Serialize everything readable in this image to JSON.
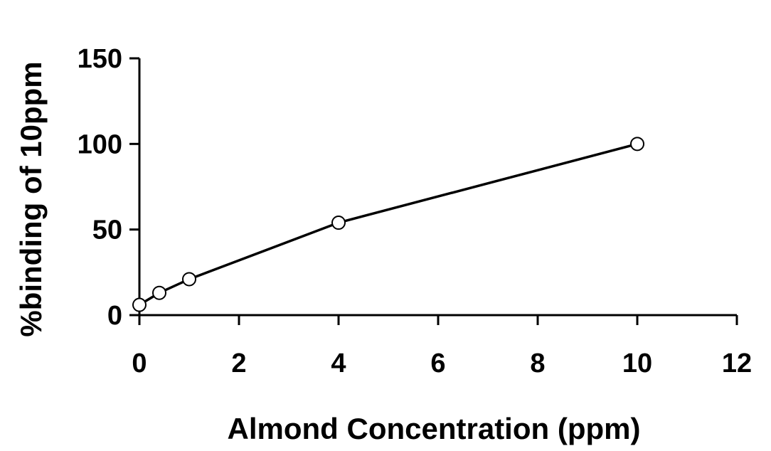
{
  "chart_data": {
    "type": "line",
    "title": "",
    "xlabel": "Almond Concentration (ppm)",
    "ylabel": "%binding of 10ppm",
    "xlim": [
      0,
      12
    ],
    "ylim": [
      0,
      150
    ],
    "x_ticks": [
      0,
      2,
      4,
      6,
      8,
      10,
      12
    ],
    "y_ticks": [
      0,
      50,
      100,
      150
    ],
    "x_tick_labels": [
      "0",
      "2",
      "4",
      "6",
      "8",
      "10",
      "12"
    ],
    "y_tick_labels": [
      "0",
      "50",
      "100",
      "150"
    ],
    "grid": false,
    "legend": "none",
    "series": [
      {
        "color": "#000000",
        "marker": "open-circle",
        "x": [
          0,
          0.4,
          1,
          4,
          10
        ],
        "y": [
          6,
          13,
          21,
          54,
          100
        ]
      }
    ]
  }
}
